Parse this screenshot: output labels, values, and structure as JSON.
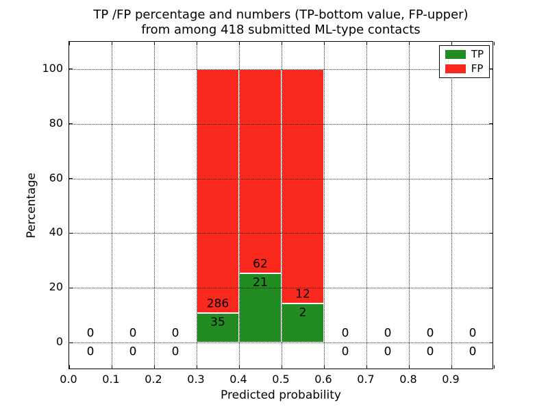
{
  "chart_data": {
    "type": "bar",
    "stacked": true,
    "title_line1": "TP /FP percentage and numbers (TP-bottom value, FP-upper)",
    "title_line2": "from among 418 submitted ML-type contacts",
    "xlabel": "Predicted probability",
    "ylabel": "Percentage",
    "xlim": [
      0.0,
      1.0
    ],
    "ylim": [
      -10,
      110
    ],
    "grid": "dotted",
    "legend_position": "upper right",
    "xticks": [
      "0.0",
      "0.1",
      "0.2",
      "0.3",
      "0.4",
      "0.5",
      "0.6",
      "0.7",
      "0.8",
      "0.9"
    ],
    "yticks": [
      "0",
      "20",
      "40",
      "60",
      "80",
      "100"
    ],
    "bin_width": 0.1,
    "note": "bars show TP percentage (green, bottom) stacked with FP percentage (red, top) summing to 100% per non-empty bin; labels are raw counts, FP above TP",
    "bins": [
      {
        "x0": 0.0,
        "tp": 0,
        "fp": 0
      },
      {
        "x0": 0.1,
        "tp": 0,
        "fp": 0
      },
      {
        "x0": 0.2,
        "tp": 0,
        "fp": 0
      },
      {
        "x0": 0.3,
        "tp": 35,
        "fp": 286
      },
      {
        "x0": 0.4,
        "tp": 21,
        "fp": 62
      },
      {
        "x0": 0.5,
        "tp": 2,
        "fp": 12
      },
      {
        "x0": 0.6,
        "tp": 0,
        "fp": 0
      },
      {
        "x0": 0.7,
        "tp": 0,
        "fp": 0
      },
      {
        "x0": 0.8,
        "tp": 0,
        "fp": 0
      },
      {
        "x0": 0.9,
        "tp": 0,
        "fp": 0
      }
    ],
    "legend": [
      {
        "label": "TP",
        "color": "#228b22"
      },
      {
        "label": "FP",
        "color": "#f92a1d"
      }
    ],
    "colors": {
      "tp": "#228b22",
      "fp": "#f92a1d",
      "grid": "#000000",
      "spine": "#000000"
    }
  }
}
